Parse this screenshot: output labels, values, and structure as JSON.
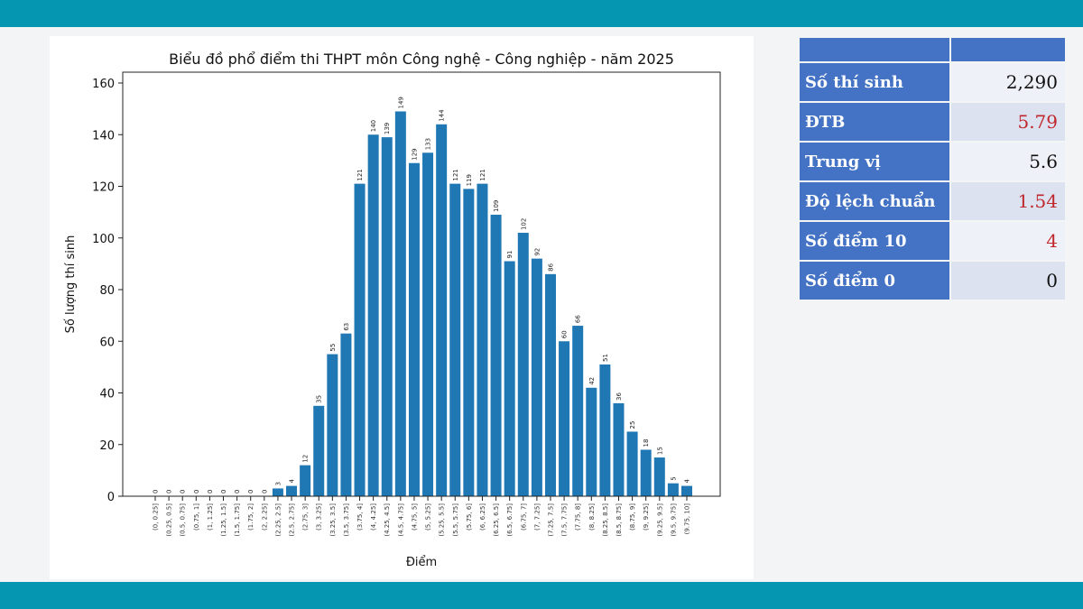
{
  "chart_data": {
    "type": "bar",
    "title": "Biểu đồ phổ điểm thi THPT môn Công nghệ - Công nghiệp - năm 2025",
    "xlabel": "Điểm",
    "ylabel": "Số lượng thí sinh",
    "ylim": [
      0,
      160
    ],
    "yticks": [
      0,
      20,
      40,
      60,
      80,
      100,
      120,
      140,
      160
    ],
    "grid": false,
    "bar_color": "#1f77b4",
    "categories": [
      "(0, 0.25]",
      "(0.25, 0.5]",
      "(0.5, 0.75]",
      "(0.75, 1]",
      "(1, 1.25]",
      "(1.25, 1.5]",
      "(1.5, 1.75]",
      "(1.75, 2]",
      "(2, 2.25]",
      "(2.25, 2.5]",
      "(2.5, 2.75]",
      "(2.75, 3]",
      "(3, 3.25]",
      "(3.25, 3.5]",
      "(3.5, 3.75]",
      "(3.75, 4]",
      "(4, 4.25]",
      "(4.25, 4.5]",
      "(4.5, 4.75]",
      "(4.75, 5]",
      "(5, 5.25]",
      "(5.25, 5.5]",
      "(5.5, 5.75]",
      "(5.75, 6]",
      "(6, 6.25]",
      "(6.25, 6.5]",
      "(6.5, 6.75]",
      "(6.75, 7]",
      "(7, 7.25]",
      "(7.25, 7.5]",
      "(7.5, 7.75]",
      "(7.75, 8]",
      "(8, 8.25]",
      "(8.25, 8.5]",
      "(8.5, 8.75]",
      "(8.75, 9]",
      "(9, 9.25]",
      "(9.25, 9.5]",
      "(9.5, 9.75]",
      "(9.75, 10]"
    ],
    "values": [
      0,
      0,
      0,
      0,
      0,
      0,
      0,
      0,
      0,
      3,
      4,
      12,
      35,
      55,
      63,
      121,
      140,
      139,
      149,
      129,
      133,
      144,
      121,
      119,
      121,
      109,
      91,
      102,
      92,
      86,
      60,
      66,
      42,
      51,
      36,
      25,
      18,
      15,
      5,
      4
    ]
  },
  "stats": {
    "header": [
      "",
      ""
    ],
    "rows": [
      {
        "label": "Số thí sinh",
        "value": "2,290",
        "color": "#111111"
      },
      {
        "label": "ĐTB",
        "value": "5.79",
        "color": "#c0272d"
      },
      {
        "label": "Trung vị",
        "value": "5.6",
        "color": "#111111"
      },
      {
        "label": "Độ lệch chuẩn",
        "value": "1.54",
        "color": "#c0272d"
      },
      {
        "label": "Số điểm 10",
        "value": "4",
        "color": "#c0272d"
      },
      {
        "label": "Số điểm 0",
        "value": "0",
        "color": "#111111"
      }
    ]
  },
  "colors": {
    "band": "#0596b2",
    "table_header": "#4472c4"
  }
}
